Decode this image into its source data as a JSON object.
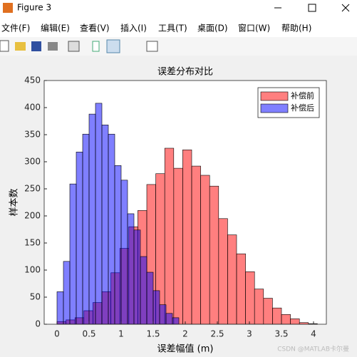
{
  "window": {
    "title": "Figure 3",
    "menus": [
      "文件(F)",
      "编辑(E)",
      "查看(V)",
      "插入(I)",
      "工具(T)",
      "桌面(D)",
      "窗口(W)",
      "帮助(H)"
    ],
    "watermark": "CSDN @MATLAB卡尔曼"
  },
  "chart_data": {
    "type": "histogram",
    "title": "误差分布对比",
    "x_label": "误差幅值 (m)",
    "y_label": "样本数",
    "xlim": [
      -0.2,
      4.2
    ],
    "ylim": [
      0,
      450
    ],
    "xticks": [
      0,
      0.5,
      1,
      1.5,
      2,
      2.5,
      3,
      3.5,
      4
    ],
    "yticks": [
      0,
      50,
      100,
      150,
      200,
      250,
      300,
      350,
      400,
      450
    ],
    "legend": "upper right",
    "opacity": 0.5,
    "series": [
      {
        "name": "补偿前",
        "color": "#ff0000",
        "bins": [
          0,
          0.14,
          0.28,
          0.42,
          0.56,
          0.7,
          0.84,
          0.98,
          1.12,
          1.26,
          1.4,
          1.54,
          1.68,
          1.82,
          1.96,
          2.1,
          2.24,
          2.38,
          2.52,
          2.66,
          2.8,
          2.94,
          3.08,
          3.22,
          3.36,
          3.5,
          3.64,
          3.78,
          3.92,
          4.06
        ],
        "values": [
          5,
          8,
          12,
          25,
          40,
          60,
          95,
          140,
          180,
          210,
          258,
          278,
          325,
          288,
          322,
          292,
          275,
          255,
          195,
          165,
          130,
          97,
          65,
          48,
          30,
          18,
          10,
          3,
          1
        ]
      },
      {
        "name": "补偿后",
        "color": "#0000ff",
        "bins": [
          0,
          0.1,
          0.2,
          0.3,
          0.4,
          0.5,
          0.6,
          0.7,
          0.8,
          0.9,
          1,
          1.1,
          1.2,
          1.3,
          1.4,
          1.5,
          1.6,
          1.7,
          1.8,
          1.9
        ],
        "values": [
          60,
          116,
          259,
          318,
          351,
          388,
          408,
          368,
          351,
          293,
          266,
          204,
          174,
          125,
          96,
          62,
          36,
          20,
          12
        ]
      }
    ]
  }
}
